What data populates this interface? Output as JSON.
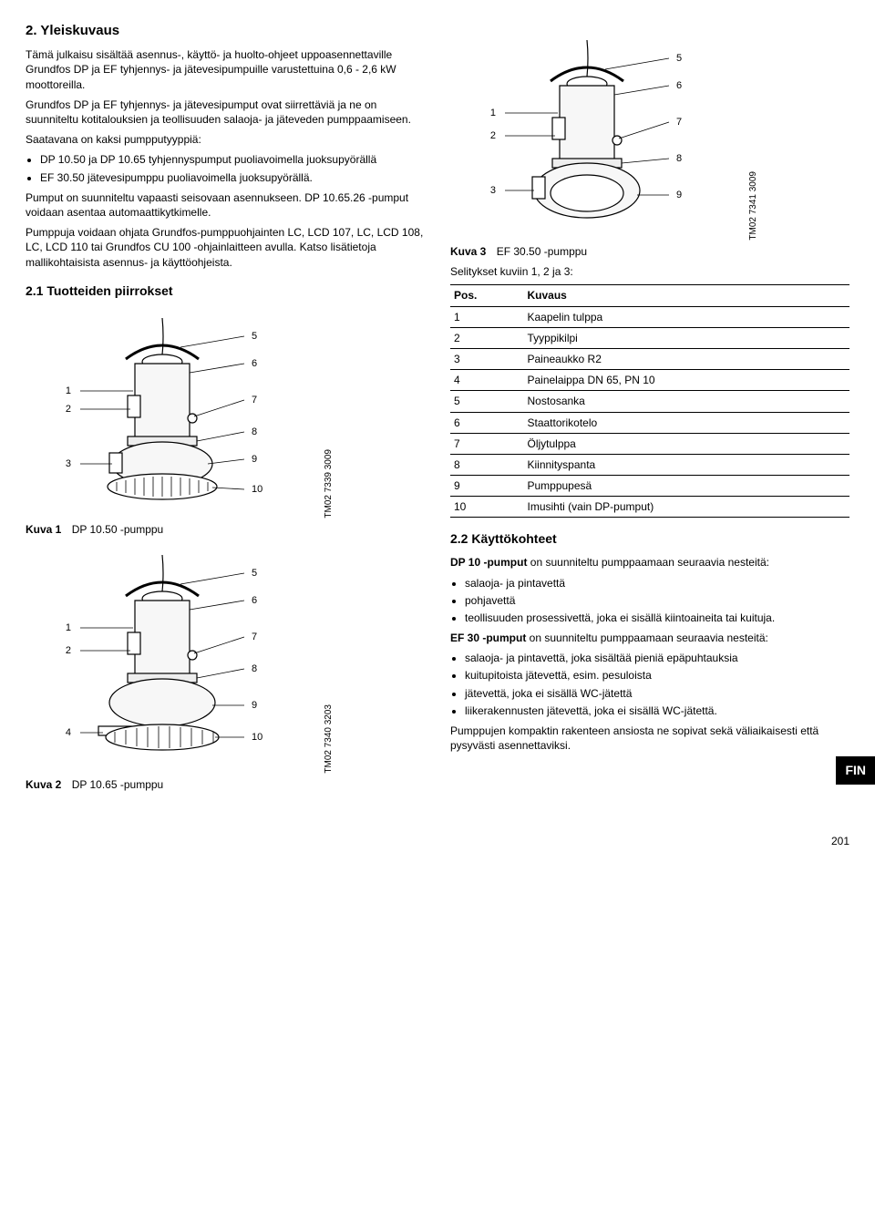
{
  "left": {
    "h2": "2. Yleiskuvaus",
    "p1": "Tämä julkaisu sisältää asennus-, käyttö- ja huolto-ohjeet uppoasennettaville Grundfos DP ja EF tyhjennys- ja jätevesipumpuille varustettuina 0,6 - 2,6 kW moottoreilla.",
    "p2": "Grundfos DP ja EF tyhjennys- ja jätevesipumput ovat siirrettäviä ja ne on suunniteltu kotitalouksien ja teollisuuden salaoja- ja jäteveden pumppaamiseen.",
    "p3": "Saatavana on kaksi pumpputyyppiä:",
    "li1": "DP 10.50 ja DP 10.65 tyhjennyspumput puoliavoimella juoksupyörällä",
    "li2": "EF 30.50 jätevesipumppu puoliavoimella juoksupyörällä.",
    "p4": "Pumput on suunniteltu vapaasti seisovaan asennukseen. DP 10.65.26 -pumput voidaan asentaa automaattikytkimelle.",
    "p5": "Pumppuja voidaan ohjata Grundfos-pumppuohjainten LC, LCD 107, LC, LCD 108, LC, LCD 110 tai Grundfos CU 100 -ohjainlaitteen avulla. Katso lisätietoja mallikohtaisista asennus- ja käyttöohjeista.",
    "h3": "2.1 Tuotteiden piirrokset",
    "fig1": {
      "label": "Kuva 1",
      "caption": "DP 10.50 -pumppu",
      "tm": "TM02 7339 3009"
    },
    "fig2": {
      "label": "Kuva 2",
      "caption": "DP 10.65 -pumppu",
      "tm": "TM02 7340 3203"
    }
  },
  "right": {
    "fig3": {
      "label": "Kuva 3",
      "caption": "EF 30.50 -pumppu",
      "tm": "TM02 7341 3009"
    },
    "legend_intro": "Selitykset kuviin 1, 2 ja 3:",
    "tbl": {
      "h1": "Pos.",
      "h2": "Kuvaus",
      "rows": [
        [
          "1",
          "Kaapelin tulppa"
        ],
        [
          "2",
          "Tyyppikilpi"
        ],
        [
          "3",
          "Paineaukko R2"
        ],
        [
          "4",
          "Painelaippa DN 65, PN 10"
        ],
        [
          "5",
          "Nostosanka"
        ],
        [
          "6",
          "Staattorikotelo"
        ],
        [
          "7",
          "Öljytulppa"
        ],
        [
          "8",
          "Kiinnityspanta"
        ],
        [
          "9",
          "Pumppupesä"
        ],
        [
          "10",
          "Imusihti (vain DP-pumput)"
        ]
      ]
    },
    "h3": "2.2 Käyttökohteet",
    "p1a": "DP 10 -pumput",
    "p1b": " on suunniteltu pumppaamaan seuraavia nesteitä:",
    "dp_li1": "salaoja- ja pintavettä",
    "dp_li2": "pohjavettä",
    "dp_li3": "teollisuuden prosessivettä, joka ei sisällä kiintoaineita tai kuituja.",
    "p2a": "EF 30 -pumput",
    "p2b": " on suunniteltu pumppaamaan seuraavia nesteitä:",
    "ef_li1": "salaoja- ja pintavettä, joka sisältää pieniä epäpuhtauksia",
    "ef_li2": "kuitupitoista jätevettä, esim. pesuloista",
    "ef_li3": "jätevettä, joka ei sisällä WC-jätettä",
    "ef_li4": "liikerakennusten jätevettä, joka ei sisällä WC-jätettä.",
    "p3": "Pumppujen kompaktin rakenteen ansiosta ne sopivat sekä väliaikaisesti että pysyvästi asennettaviksi."
  },
  "side_tab": "FIN",
  "page_num": "201",
  "callouts": {
    "fig1": [
      "1",
      "2",
      "3",
      "5",
      "6",
      "7",
      "8",
      "9",
      "10"
    ],
    "fig2": [
      "1",
      "2",
      "4",
      "5",
      "6",
      "7",
      "8",
      "9",
      "10"
    ],
    "fig3": [
      "1",
      "2",
      "3",
      "5",
      "6",
      "7",
      "8",
      "9"
    ]
  },
  "style": {
    "stroke": "#000",
    "fill_light": "#ffffff",
    "fill_mid": "#f2f2f2",
    "label_fontsize": 11
  }
}
